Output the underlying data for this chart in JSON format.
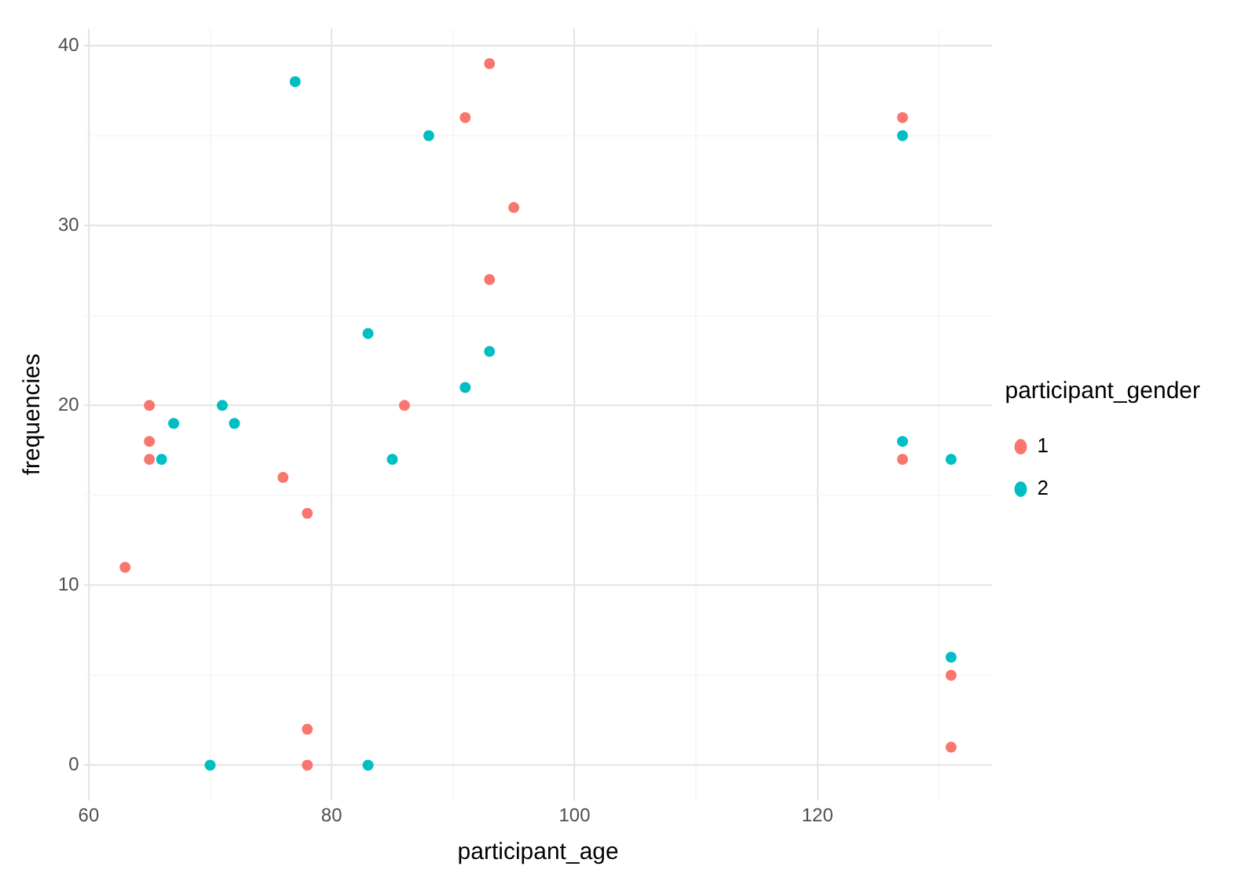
{
  "chart_data": {
    "type": "scatter",
    "xlabel": "participant_age",
    "ylabel": "frequencies",
    "legend_title": "participant_gender",
    "legend": "right",
    "grid": true,
    "marker": "circle",
    "xlim": [
      59.6,
      134.4
    ],
    "ylim": [
      -1.95,
      40.95
    ],
    "xticks": [
      60,
      {
        "value": 70,
        "label": null
      },
      80,
      {
        "value": 90,
        "label": null
      },
      100,
      {
        "value": 110,
        "label": null
      },
      120,
      {
        "value": 130,
        "label": null
      }
    ],
    "yticks": [
      0,
      {
        "value": 5,
        "label": null
      },
      10,
      {
        "value": 15,
        "label": null
      },
      20,
      {
        "value": 25,
        "label": null
      },
      30,
      {
        "value": 35,
        "label": null
      },
      40
    ],
    "series": [
      {
        "name": "1",
        "color": "#f8766d",
        "x": [
          63,
          65,
          65,
          65,
          76,
          78,
          78,
          78,
          86,
          91,
          93,
          93,
          95,
          127,
          127,
          131,
          131
        ],
        "values": [
          11,
          20,
          18,
          17,
          16,
          14,
          2,
          0,
          20,
          36,
          39,
          27,
          31,
          36,
          17,
          5,
          1
        ]
      },
      {
        "name": "2",
        "color": "#00bfc4",
        "x": [
          66,
          67,
          70,
          71,
          72,
          77,
          83,
          83,
          85,
          88,
          91,
          93,
          127,
          127,
          131,
          131
        ],
        "values": [
          17,
          19,
          0,
          20,
          19,
          38,
          24,
          0,
          17,
          35,
          21,
          23,
          35,
          18,
          17,
          6
        ]
      }
    ]
  }
}
